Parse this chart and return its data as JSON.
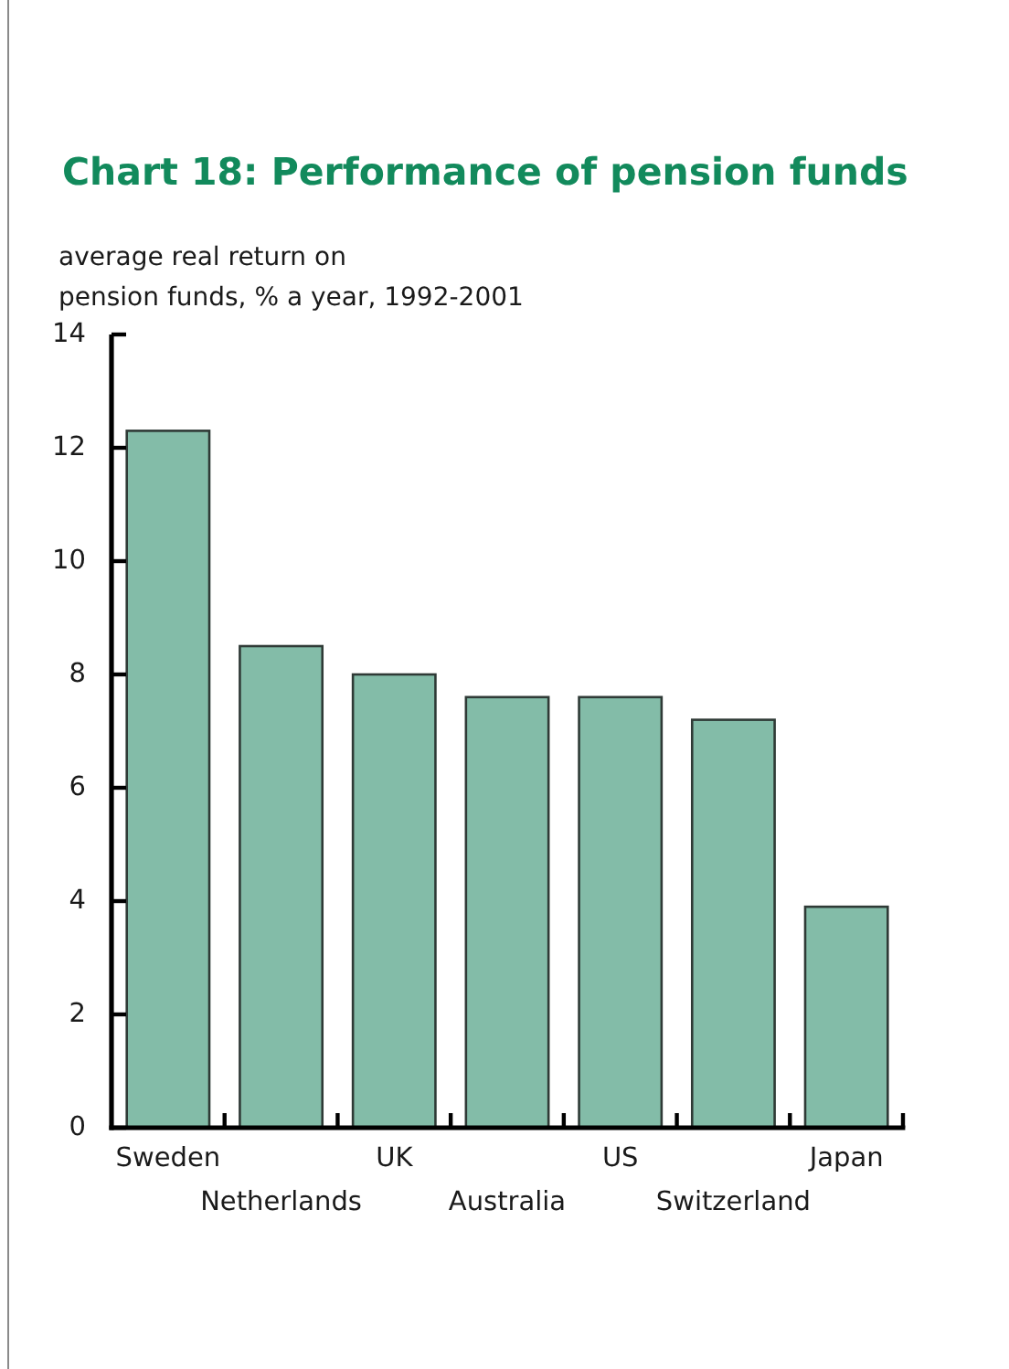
{
  "chart_data": {
    "type": "bar",
    "title": "Chart 18: Performance of pension funds",
    "ylabel": "average real return on\npension funds, % a year, 1992-2001",
    "categories": [
      "Sweden",
      "Netherlands",
      "UK",
      "Australia",
      "US",
      "Switzerland",
      "Japan"
    ],
    "values": [
      12.3,
      8.5,
      8.0,
      7.6,
      7.6,
      7.2,
      3.9
    ],
    "color": "#83bca8",
    "ylim": [
      0,
      14
    ],
    "yticks": [
      0,
      2,
      4,
      6,
      8,
      10,
      12,
      14
    ]
  }
}
